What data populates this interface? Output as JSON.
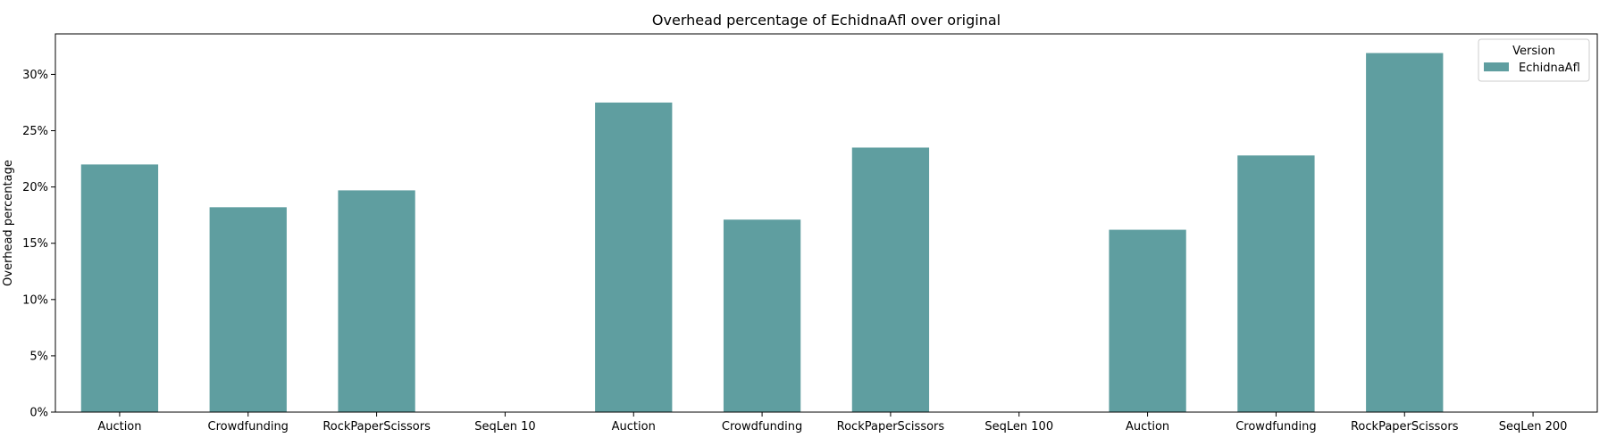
{
  "chart_data": {
    "type": "bar",
    "title": "Overhead percentage of EchidnaAfl over original",
    "xlabel": "",
    "ylabel": "Overhead percentage",
    "ylim": [
      0,
      33.6
    ],
    "yticks": [
      0,
      5,
      10,
      15,
      20,
      25,
      30
    ],
    "ytick_labels": [
      "0%",
      "5%",
      "10%",
      "15%",
      "20%",
      "25%",
      "30%"
    ],
    "categories": [
      "Auction",
      "Crowdfunding",
      "RockPaperScissors",
      "SeqLen 10",
      "Auction",
      "Crowdfunding",
      "RockPaperScissors",
      "SeqLen 100",
      "Auction",
      "Crowdfunding",
      "RockPaperScissors",
      "SeqLen 200"
    ],
    "series": [
      {
        "name": "EchidnaAfl",
        "color": "#5f9ea0",
        "values": [
          22.0,
          18.2,
          19.7,
          null,
          27.5,
          17.1,
          23.5,
          null,
          16.2,
          22.8,
          31.9,
          null
        ]
      }
    ],
    "grid": false,
    "legend": {
      "title": "Version",
      "placement": "top-right",
      "entries": [
        "EchidnaAfl"
      ]
    }
  }
}
